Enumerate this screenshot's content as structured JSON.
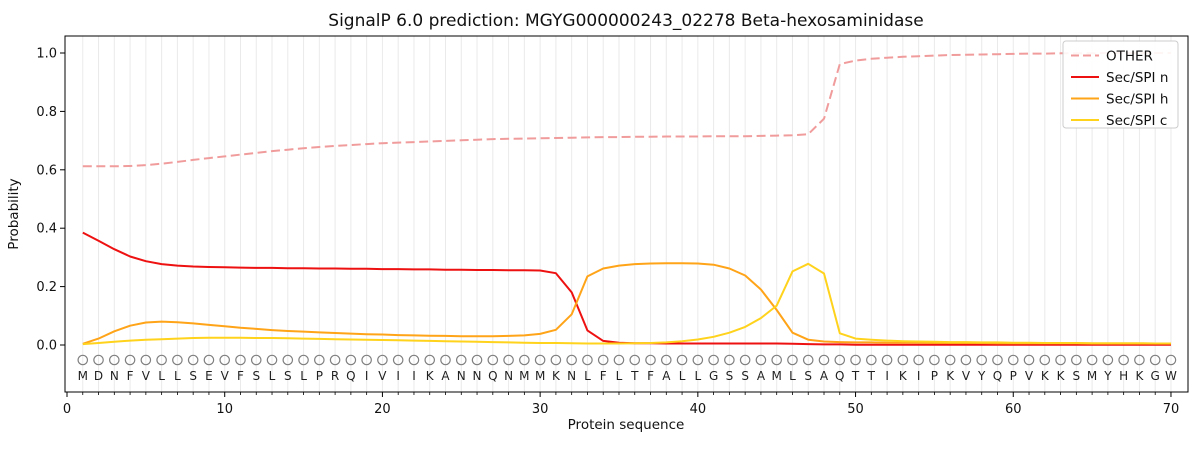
{
  "chart_data": {
    "type": "line",
    "title": "SignalP 6.0 prediction: MGYG000000243_02278 Beta-hexosaminidase",
    "xlabel": "Protein sequence",
    "ylabel": "Probability",
    "xlim": [
      -0.1,
      71.1
    ],
    "ylim": [
      -0.16,
      1.06
    ],
    "xticks": [
      "0",
      "10",
      "20",
      "30",
      "40",
      "50",
      "60",
      "70"
    ],
    "yticks": [
      "0.0",
      "0.2",
      "0.4",
      "0.6",
      "0.8",
      "1.0"
    ],
    "grid": "light vertical gridline at every residue position",
    "legend_position": "upper right",
    "sequence": "MDNFVLLSEVFSLSLPRQIVIIKANNQNMMKNLFLTFALLGSSAMLSAQTTIKIPKVYQPVKKSMYHKGW",
    "residue_marker": "O",
    "series": [
      {
        "name": "OTHER",
        "color": "#f19c9c",
        "style": "dashed",
        "values": [
          0.612,
          0.612,
          0.612,
          0.613,
          0.616,
          0.621,
          0.627,
          0.634,
          0.64,
          0.646,
          0.652,
          0.658,
          0.664,
          0.669,
          0.674,
          0.678,
          0.682,
          0.685,
          0.688,
          0.691,
          0.693,
          0.695,
          0.697,
          0.699,
          0.701,
          0.703,
          0.705,
          0.706,
          0.707,
          0.708,
          0.709,
          0.71,
          0.711,
          0.712,
          0.712,
          0.713,
          0.713,
          0.714,
          0.714,
          0.714,
          0.715,
          0.715,
          0.715,
          0.716,
          0.717,
          0.718,
          0.722,
          0.775,
          0.962,
          0.974,
          0.98,
          0.984,
          0.987,
          0.989,
          0.991,
          0.993,
          0.994,
          0.995,
          0.996,
          0.997,
          0.998,
          0.998,
          0.999,
          0.999,
          0.999,
          1.0,
          1.0,
          1.0,
          1.0,
          1.0
        ]
      },
      {
        "name": "Sec/SPI n",
        "color": "#ee1111",
        "style": "solid",
        "values": [
          0.385,
          0.357,
          0.328,
          0.303,
          0.287,
          0.277,
          0.272,
          0.269,
          0.267,
          0.266,
          0.265,
          0.264,
          0.264,
          0.263,
          0.263,
          0.262,
          0.262,
          0.261,
          0.261,
          0.26,
          0.26,
          0.259,
          0.259,
          0.258,
          0.258,
          0.257,
          0.257,
          0.256,
          0.256,
          0.255,
          0.246,
          0.18,
          0.05,
          0.014,
          0.008,
          0.006,
          0.006,
          0.005,
          0.005,
          0.005,
          0.005,
          0.005,
          0.005,
          0.005,
          0.005,
          0.004,
          0.003,
          0.002,
          0.002,
          0.001,
          0.001,
          0.001,
          0.001,
          0.001,
          0.001,
          0.001,
          0.001,
          0.001,
          0.001,
          0.001,
          0.001,
          0.001,
          0.001,
          0.001,
          0.001,
          0.001,
          0.001,
          0.001,
          0.001,
          0.001
        ]
      },
      {
        "name": "Sec/SPI h",
        "color": "#ffa418",
        "style": "solid",
        "values": [
          0.004,
          0.022,
          0.047,
          0.066,
          0.077,
          0.08,
          0.078,
          0.074,
          0.069,
          0.064,
          0.059,
          0.055,
          0.051,
          0.048,
          0.046,
          0.043,
          0.041,
          0.039,
          0.037,
          0.036,
          0.034,
          0.033,
          0.032,
          0.031,
          0.03,
          0.03,
          0.03,
          0.031,
          0.033,
          0.038,
          0.052,
          0.105,
          0.235,
          0.262,
          0.272,
          0.277,
          0.279,
          0.28,
          0.28,
          0.279,
          0.275,
          0.262,
          0.238,
          0.19,
          0.12,
          0.042,
          0.018,
          0.012,
          0.01,
          0.009,
          0.009,
          0.008,
          0.008,
          0.008,
          0.007,
          0.007,
          0.007,
          0.007,
          0.006,
          0.006,
          0.006,
          0.006,
          0.006,
          0.006,
          0.005,
          0.005,
          0.005,
          0.005,
          0.005,
          0.005
        ]
      },
      {
        "name": "Sec/SPI c",
        "color": "#ffd21c",
        "style": "solid",
        "values": [
          0.003,
          0.007,
          0.011,
          0.015,
          0.018,
          0.02,
          0.022,
          0.024,
          0.025,
          0.025,
          0.025,
          0.024,
          0.024,
          0.023,
          0.022,
          0.021,
          0.02,
          0.019,
          0.018,
          0.017,
          0.016,
          0.015,
          0.014,
          0.013,
          0.012,
          0.011,
          0.01,
          0.009,
          0.008,
          0.007,
          0.007,
          0.006,
          0.005,
          0.005,
          0.005,
          0.006,
          0.007,
          0.009,
          0.013,
          0.019,
          0.028,
          0.042,
          0.062,
          0.092,
          0.135,
          0.252,
          0.278,
          0.245,
          0.04,
          0.022,
          0.018,
          0.015,
          0.013,
          0.012,
          0.011,
          0.01,
          0.01,
          0.009,
          0.009,
          0.008,
          0.008,
          0.007,
          0.007,
          0.007,
          0.006,
          0.006,
          0.006,
          0.006,
          0.005,
          0.005
        ]
      }
    ]
  },
  "style_colors": {
    "grid": "#eaeaea",
    "spine": "#000000",
    "residue_circle": "#808080",
    "residue_letter": "#1f1f1f",
    "legend_border": "#cccccc",
    "legend_fill": "#ffffff"
  }
}
